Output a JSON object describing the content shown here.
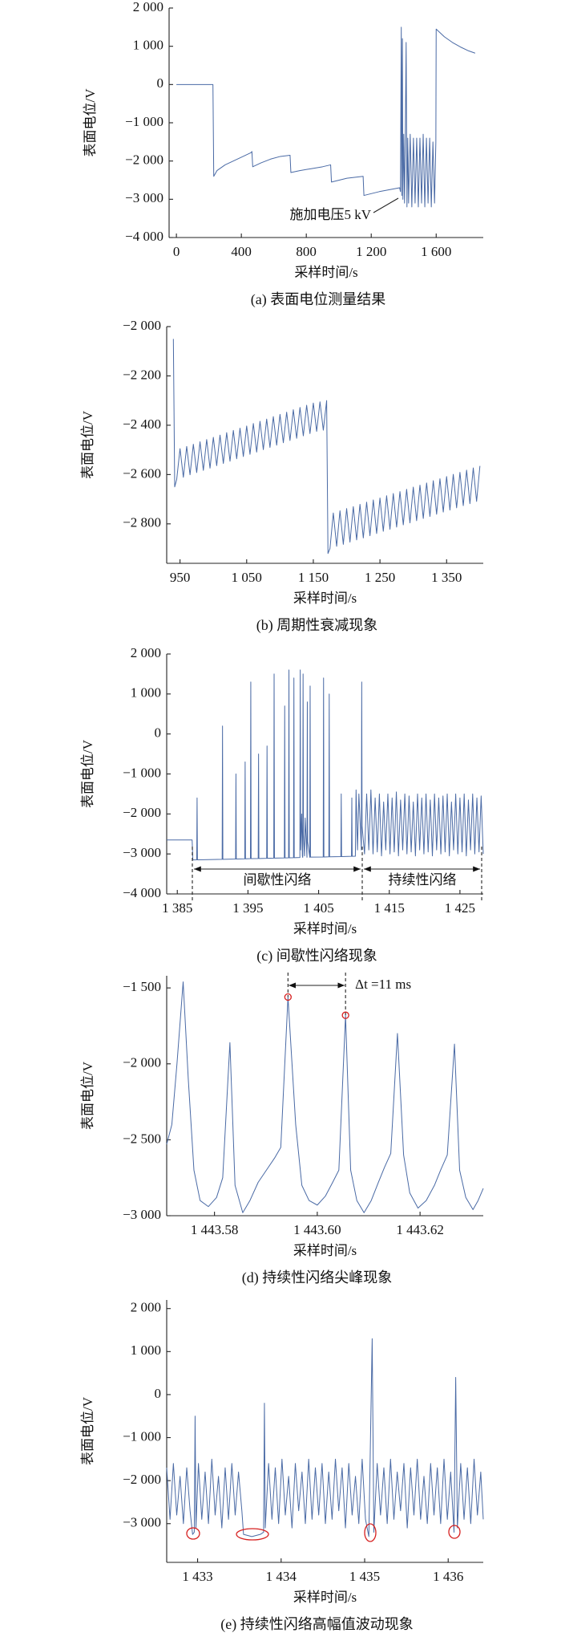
{
  "chart_data": [
    {
      "type": "line",
      "title": "(a)  表面电位测量结果",
      "x_label": "采样时间/s",
      "y_label": "表面电位/V",
      "annotation": "施加电压5 kV",
      "color": "#4a6aa5",
      "xlim": [
        -45,
        1890
      ],
      "ylim": [
        -4000,
        2000
      ],
      "xticks": [
        0,
        400,
        800,
        {
          "value": 1200,
          "label": "1 200"
        },
        {
          "value": 1600,
          "label": "1 600"
        }
      ],
      "yticks": [
        {
          "value": 2000,
          "label": "2 000"
        },
        {
          "value": 1000,
          "label": "1 000"
        },
        0,
        {
          "value": -1000,
          "label": "−1 000"
        },
        {
          "value": -2000,
          "label": "−2 000"
        },
        {
          "value": -3000,
          "label": "−3 000"
        },
        {
          "value": -4000,
          "label": "−4 000"
        }
      ],
      "x": [
        0,
        225,
        230,
        250,
        300,
        350,
        400,
        460,
        465,
        470,
        520,
        580,
        640,
        700,
        705,
        760,
        830,
        900,
        950,
        955,
        1050,
        1150,
        1155,
        1250,
        1375,
        1380,
        1385,
        1388,
        1392,
        1395,
        1400,
        1405,
        1410,
        1415,
        1420,
        1425,
        1430,
        1440,
        1450,
        1460,
        1470,
        1480,
        1490,
        1500,
        1510,
        1520,
        1530,
        1540,
        1550,
        1560,
        1570,
        1580,
        1590,
        1598,
        1600,
        1650,
        1700,
        1750,
        1800,
        1840
      ],
      "values": [
        0,
        0,
        -2400,
        -2250,
        -2100,
        -2000,
        -1900,
        -1780,
        -1750,
        -2150,
        -2050,
        -1950,
        -1880,
        -1850,
        -2300,
        -2250,
        -2200,
        -2150,
        -2100,
        -2550,
        -2450,
        -2400,
        -2900,
        -2800,
        -2700,
        -2800,
        1500,
        -2900,
        1200,
        -3000,
        -1300,
        -3100,
        -1300,
        1100,
        -3200,
        -1400,
        -3100,
        -1300,
        -3200,
        -1400,
        -3100,
        -1400,
        -3200,
        -1400,
        -3100,
        -1300,
        -3200,
        -1400,
        -3100,
        -1400,
        -3200,
        -1500,
        -3100,
        -1500,
        1450,
        1250,
        1100,
        980,
        880,
        820
      ]
    },
    {
      "type": "line",
      "title": "(b)  周期性衰减现象",
      "x_label": "采样时间/s",
      "y_label": "表面电位/V",
      "color": "#4a6aa5",
      "xlim": [
        930,
        1405
      ],
      "ylim": [
        -2960,
        -2000
      ],
      "xticks": [
        950,
        {
          "value": 1050,
          "label": "1 050"
        },
        {
          "value": 1150,
          "label": "1 150"
        },
        {
          "value": 1250,
          "label": "1 250"
        },
        {
          "value": 1350,
          "label": "1 350"
        }
      ],
      "yticks": [
        {
          "value": -2000,
          "label": "−2 000"
        },
        {
          "value": -2200,
          "label": "−2 200"
        },
        {
          "value": -2400,
          "label": "−2 400"
        },
        {
          "value": -2600,
          "label": "−2 600"
        },
        {
          "value": -2800,
          "label": "−2 800"
        }
      ],
      "x": [
        940,
        942,
        945,
        950,
        955,
        960,
        965,
        970,
        975,
        980,
        985,
        990,
        995,
        1000,
        1005,
        1010,
        1015,
        1020,
        1025,
        1030,
        1035,
        1040,
        1045,
        1050,
        1055,
        1060,
        1065,
        1070,
        1075,
        1080,
        1085,
        1090,
        1095,
        1100,
        1105,
        1110,
        1115,
        1120,
        1125,
        1130,
        1135,
        1140,
        1145,
        1150,
        1155,
        1160,
        1165,
        1170,
        1172,
        1175,
        1180,
        1185,
        1190,
        1195,
        1200,
        1205,
        1210,
        1215,
        1220,
        1225,
        1230,
        1235,
        1240,
        1245,
        1250,
        1255,
        1260,
        1265,
        1270,
        1275,
        1280,
        1285,
        1290,
        1295,
        1300,
        1305,
        1310,
        1315,
        1320,
        1325,
        1330,
        1335,
        1340,
        1345,
        1350,
        1355,
        1360,
        1365,
        1370,
        1375,
        1380,
        1385,
        1390,
        1395,
        1400
      ],
      "values": [
        -2050,
        -2650,
        -2620,
        -2495,
        -2611,
        -2486,
        -2601,
        -2477,
        -2592,
        -2467,
        -2583,
        -2458,
        -2574,
        -2449,
        -2564,
        -2440,
        -2555,
        -2430,
        -2546,
        -2421,
        -2536,
        -2412,
        -2527,
        -2403,
        -2518,
        -2393,
        -2509,
        -2384,
        -2499,
        -2375,
        -2490,
        -2365,
        -2481,
        -2356,
        -2471,
        -2347,
        -2462,
        -2337,
        -2453,
        -2328,
        -2443,
        -2319,
        -2434,
        -2310,
        -2425,
        -2305,
        -2420,
        -2300,
        -2920,
        -2900,
        -2756,
        -2891,
        -2747,
        -2883,
        -2738,
        -2874,
        -2730,
        -2865,
        -2721,
        -2857,
        -2712,
        -2848,
        -2703,
        -2839,
        -2695,
        -2830,
        -2686,
        -2822,
        -2677,
        -2813,
        -2669,
        -2804,
        -2660,
        -2796,
        -2651,
        -2787,
        -2643,
        -2778,
        -2634,
        -2770,
        -2625,
        -2761,
        -2617,
        -2752,
        -2608,
        -2744,
        -2599,
        -2735,
        -2591,
        -2726,
        -2582,
        -2718,
        -2573,
        -2709,
        -2565
      ]
    },
    {
      "type": "line",
      "title": "(c)  间歇性闪络现象",
      "x_label": "采样时间/s",
      "y_label": "表面电位/V",
      "annotations": [
        "间歇性闪络",
        "持续性闪络"
      ],
      "color": "#4a6aa5",
      "xlim": [
        1383.5,
        1428.3
      ],
      "ylim": [
        -4000,
        2000
      ],
      "xticks": [
        {
          "value": 1385,
          "label": "1 385"
        },
        {
          "value": 1395,
          "label": "1 395"
        },
        {
          "value": 1405,
          "label": "1 405"
        },
        {
          "value": 1415,
          "label": "1 415"
        },
        {
          "value": 1425,
          "label": "1 425"
        }
      ],
      "yticks": [
        {
          "value": 2000,
          "label": "2 000"
        },
        {
          "value": 1000,
          "label": "1 000"
        },
        0,
        {
          "value": -1000,
          "label": "−1 000"
        },
        {
          "value": -2000,
          "label": "−2 000"
        },
        {
          "value": -3000,
          "label": "−3 000"
        },
        {
          "value": -4000,
          "label": "−4 000"
        }
      ],
      "x": [
        1383.5,
        1387.1,
        1387.2,
        1387.75,
        1387.8,
        1387.85,
        1391.35,
        1391.4,
        1391.45,
        1393.25,
        1393.3,
        1393.35,
        1394.55,
        1394.6,
        1394.65,
        1395.35,
        1395.4,
        1395.45,
        1396.45,
        1396.5,
        1396.55,
        1397.65,
        1397.7,
        1397.75,
        1398.65,
        1398.7,
        1398.75,
        1400.15,
        1400.2,
        1400.25,
        1400.75,
        1400.8,
        1400.85,
        1401.45,
        1401.5,
        1401.55,
        1402.35,
        1402.4,
        1402.45,
        1402.6,
        1402.7,
        1402.75,
        1402.8,
        1402.85,
        1403.0,
        1403.1,
        1403.35,
        1403.4,
        1403.45,
        1403.75,
        1403.8,
        1403.85,
        1405.65,
        1405.7,
        1405.75,
        1406.45,
        1406.5,
        1406.55,
        1408.15,
        1408.2,
        1408.25,
        1409.65,
        1409.7,
        1409.75,
        1410.2,
        1410.3,
        1410.5,
        1410.7,
        1411.05,
        1411.1,
        1411.15,
        1411.5,
        1411.8,
        1412.1,
        1412.4,
        1412.7,
        1413,
        1413.3,
        1413.6,
        1413.9,
        1414.2,
        1414.5,
        1414.8,
        1415.1,
        1415.4,
        1415.7,
        1416,
        1416.3,
        1416.6,
        1416.9,
        1417.2,
        1417.5,
        1417.8,
        1418.1,
        1418.4,
        1418.7,
        1419,
        1419.3,
        1419.6,
        1419.9,
        1420.2,
        1420.5,
        1420.8,
        1421.1,
        1421.4,
        1421.7,
        1422,
        1422.3,
        1422.6,
        1422.9,
        1423.2,
        1423.5,
        1423.8,
        1424.1,
        1424.4,
        1424.7,
        1425,
        1425.3,
        1425.6,
        1425.9,
        1426.2,
        1426.5,
        1426.8,
        1427.1,
        1427.4,
        1427.7,
        1428,
        1428.3
      ],
      "values": [
        -2650,
        -2650,
        -3150,
        -3148,
        -1600,
        -3148,
        -3134,
        200,
        -3134,
        -3127,
        -1000,
        -3127,
        -3122,
        -700,
        -3122,
        -3118,
        1300,
        -3118,
        -3114,
        -500,
        -3114,
        -3110,
        -300,
        -3110,
        -3105,
        1500,
        -3105,
        -3100,
        700,
        -3100,
        -3097,
        1600,
        -3097,
        -3094,
        1400,
        -3094,
        -3090,
        1600,
        -2900,
        -2000,
        -3050,
        -3088,
        1500,
        -2500,
        -3050,
        -2100,
        -3085,
        800,
        -2700,
        -3084,
        1200,
        -3080,
        -3076,
        1400,
        -3076,
        -3072,
        1000,
        -3072,
        -3066,
        -1500,
        -3066,
        -3060,
        -1600,
        -3060,
        -3058,
        -1400,
        -2900,
        -1500,
        -2900,
        1300,
        -2300,
        -3000,
        -1500,
        -2900,
        -1400,
        -3000,
        -1600,
        -2950,
        -1500,
        -3050,
        -1700,
        -2900,
        -1500,
        -3000,
        -1600,
        -2950,
        -1450,
        -3050,
        -1650,
        -2900,
        -1500,
        -3000,
        -1550,
        -2950,
        -1700,
        -3050,
        -1500,
        -2900,
        -1600,
        -3000,
        -1500,
        -2950,
        -1650,
        -3050,
        -1500,
        -2900,
        -1600,
        -3000,
        -1550,
        -2950,
        -1500,
        -3050,
        -1700,
        -2900,
        -1500,
        -3000,
        -1600,
        -2950,
        -1500,
        -3050,
        -1650,
        -2900,
        -1500,
        -3000,
        -1600,
        -2950,
        -1550,
        -3000
      ]
    },
    {
      "type": "line",
      "title": "(d)  持续性闪络尖峰现象",
      "x_label": "采样时间/s",
      "y_label": "表面电位/V",
      "annotation": "Δt =11 ms",
      "color": "#4a6aa5",
      "xlim": [
        1443.5707,
        1443.6323
      ],
      "ylim": [
        -3000,
        -1420
      ],
      "xticks": [
        {
          "value": 1443.58,
          "label": "1 443.58"
        },
        {
          "value": 1443.6,
          "label": "1 443.60"
        },
        {
          "value": 1443.62,
          "label": "1 443.62"
        }
      ],
      "yticks": [
        {
          "value": -1500,
          "label": "−1 500"
        },
        {
          "value": -2000,
          "label": "−2 000"
        },
        {
          "value": -2500,
          "label": "−2 500"
        },
        {
          "value": -3000,
          "label": "−3 000"
        }
      ],
      "x": [
        1443.5707,
        1443.5717,
        1443.5727,
        1443.5739,
        1443.5749,
        1443.576,
        1443.5772,
        1443.5788,
        1443.5804,
        1443.5816,
        1443.583,
        1443.584,
        1443.5855,
        1443.5869,
        1443.5885,
        1443.5901,
        1443.5917,
        1443.5929,
        1443.5943,
        1443.5958,
        1443.597,
        1443.5984,
        1443.6,
        1443.6016,
        1443.603,
        1443.6042,
        1443.6055,
        1443.6065,
        1443.6077,
        1443.6091,
        1443.6105,
        1443.6119,
        1443.6131,
        1443.6143,
        1443.6156,
        1443.6168,
        1443.618,
        1443.6196,
        1443.6212,
        1443.6228,
        1443.624,
        1443.6253,
        1443.6267,
        1443.6277,
        1443.6289,
        1443.6303,
        1443.6313,
        1443.6323
      ],
      "values": [
        -2530,
        -2400,
        -2000,
        -1460,
        -2100,
        -2700,
        -2900,
        -2940,
        -2880,
        -2750,
        -1860,
        -2800,
        -2980,
        -2900,
        -2780,
        -2700,
        -2620,
        -2550,
        -1560,
        -2400,
        -2800,
        -2900,
        -2930,
        -2870,
        -2780,
        -2700,
        -1680,
        -2700,
        -2900,
        -2980,
        -2900,
        -2780,
        -2680,
        -2590,
        -1800,
        -2600,
        -2850,
        -2950,
        -2900,
        -2800,
        -2700,
        -2600,
        -1870,
        -2700,
        -2880,
        -2960,
        -2900,
        -2820
      ]
    },
    {
      "type": "line",
      "title": "(e)  持续性闪络高幅值波动现象",
      "x_label": "采样时间/s",
      "y_label": "表面电位/V",
      "color": "#4a6aa5",
      "xlim": [
        1432.63,
        1436.42
      ],
      "ylim": [
        -3900,
        2200
      ],
      "xticks": [
        {
          "value": 1433,
          "label": "1 433"
        },
        {
          "value": 1434,
          "label": "1 434"
        },
        {
          "value": 1435,
          "label": "1 435"
        },
        {
          "value": 1436,
          "label": "1 436"
        }
      ],
      "yticks": [
        {
          "value": 2000,
          "label": "2 000"
        },
        {
          "value": 1000,
          "label": "1 000"
        },
        0,
        {
          "value": -1000,
          "label": "−1 000"
        },
        {
          "value": -2000,
          "label": "−2 000"
        },
        {
          "value": -3000,
          "label": "−3 000"
        }
      ],
      "x": [
        1432.63,
        1432.67,
        1432.71,
        1432.75,
        1432.79,
        1432.83,
        1432.87,
        1432.91,
        1432.94,
        1432.96,
        1432.97,
        1432.98,
        1433.01,
        1433.05,
        1433.09,
        1433.13,
        1433.17,
        1433.21,
        1433.25,
        1433.29,
        1433.33,
        1433.37,
        1433.41,
        1433.45,
        1433.49,
        1433.53,
        1433.55,
        1433.65,
        1433.75,
        1433.79,
        1433.8,
        1433.81,
        1433.85,
        1433.89,
        1433.93,
        1433.97,
        1434.01,
        1434.05,
        1434.09,
        1434.13,
        1434.17,
        1434.21,
        1434.25,
        1434.29,
        1434.33,
        1434.37,
        1434.41,
        1434.45,
        1434.49,
        1434.53,
        1434.57,
        1434.61,
        1434.65,
        1434.69,
        1434.73,
        1434.77,
        1434.81,
        1434.85,
        1434.89,
        1434.93,
        1434.97,
        1435.01,
        1435.05,
        1435.09,
        1435.11,
        1435.15,
        1435.19,
        1435.23,
        1435.27,
        1435.31,
        1435.35,
        1435.39,
        1435.43,
        1435.47,
        1435.51,
        1435.55,
        1435.59,
        1435.63,
        1435.67,
        1435.71,
        1435.75,
        1435.79,
        1435.83,
        1435.87,
        1435.91,
        1435.95,
        1435.99,
        1436.03,
        1436.07,
        1436.09,
        1436.11,
        1436.15,
        1436.19,
        1436.23,
        1436.27,
        1436.31,
        1436.35,
        1436.39,
        1436.42
      ],
      "values": [
        -1700,
        -2900,
        -1600,
        -2800,
        -1900,
        -3000,
        -1700,
        -2700,
        -3250,
        -3200,
        -500,
        -3100,
        -1600,
        -2900,
        -1800,
        -3000,
        -1500,
        -2800,
        -1900,
        -3100,
        -1700,
        -2900,
        -1600,
        -2800,
        -1800,
        -2700,
        -3250,
        -3300,
        -3250,
        -3200,
        -200,
        -3100,
        -1600,
        -2900,
        -1700,
        -3000,
        -1500,
        -2800,
        -1900,
        -3100,
        -1600,
        -2700,
        -1800,
        -3000,
        -1500,
        -2900,
        -1700,
        -2800,
        -1600,
        -3000,
        -1800,
        -2900,
        -1500,
        -2700,
        -1700,
        -3100,
        -1600,
        -2800,
        -1900,
        -3000,
        -1500,
        -2900,
        -3300,
        1300,
        -3200,
        -1600,
        -2800,
        -1700,
        -3000,
        -1500,
        -2900,
        -1800,
        -2700,
        -1600,
        -3100,
        -1700,
        -2800,
        -1500,
        -2900,
        -1900,
        -3000,
        -1600,
        -2800,
        -1700,
        -3000,
        -1500,
        -2900,
        -1800,
        -3200,
        400,
        -3100,
        -1600,
        -2900,
        -1700,
        -3000,
        -1500,
        -2800,
        -1800,
        -2900
      ]
    }
  ]
}
